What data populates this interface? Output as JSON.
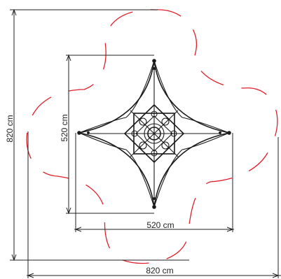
{
  "dimensions": {
    "outer_width_label": "820 cm",
    "outer_height_label": "820 cm",
    "inner_width_label": "520 cm",
    "inner_height_label": "520 cm"
  },
  "colors": {
    "safety_zone": "#e0202a",
    "structure": "#1a1a1a",
    "dimension_lines": "#222222"
  }
}
